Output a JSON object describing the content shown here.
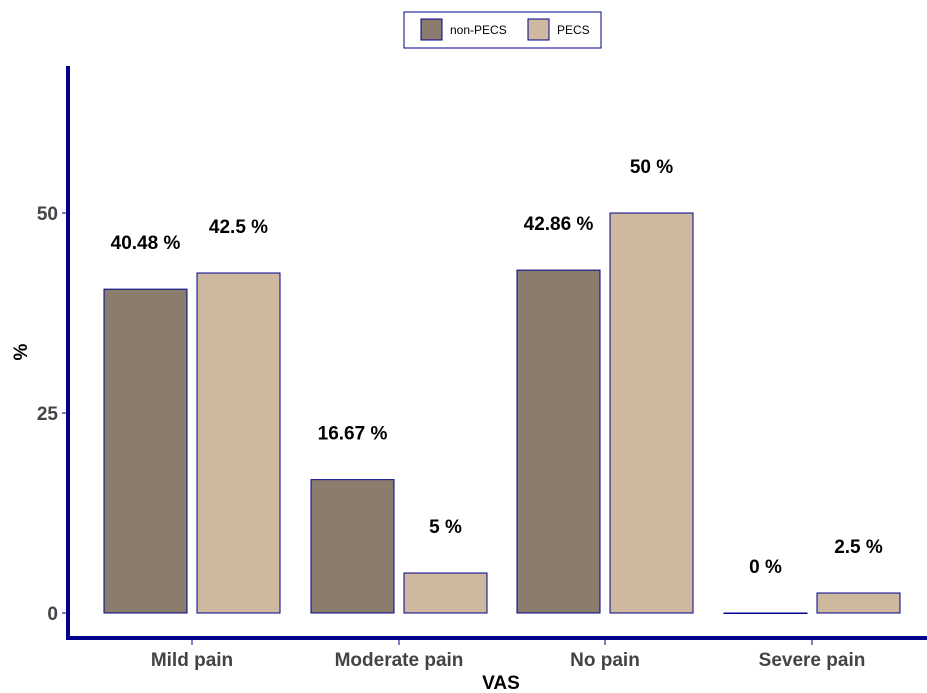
{
  "chart_data": {
    "type": "bar",
    "categories": [
      "Mild pain",
      "Moderate pain",
      "No pain",
      "Severe pain"
    ],
    "series": [
      {
        "name": "non-PECS",
        "values": [
          40.48,
          16.67,
          42.86,
          0
        ],
        "labels": [
          "40.48 %",
          "16.67 %",
          "42.86 %",
          "0 %"
        ],
        "color": "#8a7d6e"
      },
      {
        "name": "PECS",
        "values": [
          42.5,
          5,
          50,
          2.5
        ],
        "labels": [
          "42.5 %",
          "5 %",
          "50 %",
          "2.5 %"
        ],
        "color": "#cfb8a0"
      }
    ],
    "xlabel": "VAS",
    "ylabel": "%",
    "ylim": [
      0,
      67
    ],
    "yticks": [
      0,
      25,
      50
    ],
    "ytick_labels": [
      "0",
      "25",
      "50"
    ],
    "legend_position": "top",
    "grid": false,
    "axis_color": "#00008b",
    "bar_border_color": "#00008b"
  }
}
